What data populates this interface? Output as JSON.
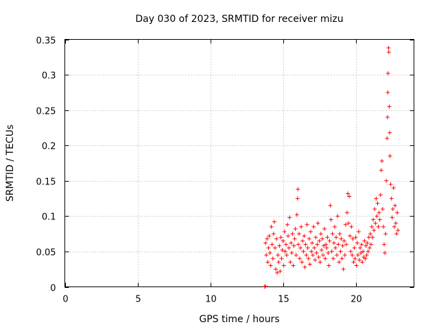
{
  "chart_data": {
    "type": "scatter",
    "title": "Day 030 of 2023, SRMTID for receiver mizu",
    "xlabel": "GPS time / hours",
    "ylabel": "SRMTID / TECUs",
    "xlim": [
      0,
      24
    ],
    "ylim": [
      0,
      0.35
    ],
    "xticks": [
      0,
      5,
      10,
      15,
      20
    ],
    "yticks": [
      0,
      0.05,
      0.1,
      0.15,
      0.2,
      0.25,
      0.3,
      0.35
    ],
    "xtick_labels": [
      "0",
      "5",
      "10",
      "15",
      "20"
    ],
    "ytick_labels": [
      "0",
      "0.05",
      "0.1",
      "0.15",
      "0.2",
      "0.25",
      "0.3",
      "0.35"
    ],
    "grid": true,
    "marker": "+",
    "color": "#ff0000",
    "series": [
      {
        "points": [
          [
            13.75,
            0.0
          ],
          [
            13.78,
            0.001
          ],
          [
            13.8,
            0.062
          ],
          [
            13.85,
            0.045
          ],
          [
            13.9,
            0.068
          ],
          [
            13.95,
            0.035
          ],
          [
            14.0,
            0.055
          ],
          [
            14.05,
            0.072
          ],
          [
            14.1,
            0.048
          ],
          [
            14.15,
            0.03
          ],
          [
            14.2,
            0.085
          ],
          [
            14.25,
            0.06
          ],
          [
            14.3,
            0.04
          ],
          [
            14.35,
            0.075
          ],
          [
            14.4,
            0.092
          ],
          [
            14.45,
            0.055
          ],
          [
            14.5,
            0.025
          ],
          [
            14.55,
            0.068
          ],
          [
            14.6,
            0.02
          ],
          [
            14.65,
            0.045
          ],
          [
            14.7,
            0.035
          ],
          [
            14.75,
            0.058
          ],
          [
            14.8,
            0.022
          ],
          [
            14.85,
            0.07
          ],
          [
            14.9,
            0.04
          ],
          [
            14.95,
            0.052
          ],
          [
            15.0,
            0.065
          ],
          [
            15.05,
            0.03
          ],
          [
            15.1,
            0.078
          ],
          [
            15.15,
            0.05
          ],
          [
            15.2,
            0.06
          ],
          [
            15.25,
            0.045
          ],
          [
            15.3,
            0.088
          ],
          [
            15.35,
            0.072
          ],
          [
            15.4,
            0.055
          ],
          [
            15.45,
            0.098
          ],
          [
            15.5,
            0.035
          ],
          [
            15.55,
            0.062
          ],
          [
            15.6,
            0.048
          ],
          [
            15.65,
            0.075
          ],
          [
            15.7,
            0.03
          ],
          [
            15.75,
            0.058
          ],
          [
            15.8,
            0.068
          ],
          [
            15.85,
            0.082
          ],
          [
            15.9,
            0.045
          ],
          [
            15.95,
            0.102
          ],
          [
            16.0,
            0.125
          ],
          [
            16.02,
            0.138
          ],
          [
            16.05,
            0.06
          ],
          [
            16.1,
            0.075
          ],
          [
            16.15,
            0.04
          ],
          [
            16.2,
            0.055
          ],
          [
            16.25,
            0.085
          ],
          [
            16.3,
            0.035
          ],
          [
            16.35,
            0.065
          ],
          [
            16.4,
            0.05
          ],
          [
            16.45,
            0.072
          ],
          [
            16.5,
            0.028
          ],
          [
            16.55,
            0.06
          ],
          [
            16.6,
            0.045
          ],
          [
            16.65,
            0.088
          ],
          [
            16.7,
            0.055
          ],
          [
            16.75,
            0.04
          ],
          [
            16.8,
            0.068
          ],
          [
            16.85,
            0.032
          ],
          [
            16.9,
            0.078
          ],
          [
            16.95,
            0.05
          ],
          [
            17.0,
            0.062
          ],
          [
            17.05,
            0.045
          ],
          [
            17.1,
            0.085
          ],
          [
            17.15,
            0.055
          ],
          [
            17.2,
            0.038
          ],
          [
            17.25,
            0.07
          ],
          [
            17.3,
            0.048
          ],
          [
            17.35,
            0.06
          ],
          [
            17.4,
            0.09
          ],
          [
            17.45,
            0.042
          ],
          [
            17.5,
            0.065
          ],
          [
            17.55,
            0.035
          ],
          [
            17.6,
            0.075
          ],
          [
            17.65,
            0.052
          ],
          [
            17.7,
            0.068
          ],
          [
            17.75,
            0.045
          ],
          [
            17.8,
            0.058
          ],
          [
            17.85,
            0.082
          ],
          [
            17.9,
            0.04
          ],
          [
            17.95,
            0.06
          ],
          [
            18.0,
            0.055
          ],
          [
            18.05,
            0.07
          ],
          [
            18.1,
            0.048
          ],
          [
            18.15,
            0.03
          ],
          [
            18.2,
            0.065
          ],
          [
            18.25,
            0.115
          ],
          [
            18.3,
            0.095
          ],
          [
            18.35,
            0.05
          ],
          [
            18.4,
            0.075
          ],
          [
            18.45,
            0.04
          ],
          [
            18.5,
            0.062
          ],
          [
            18.55,
            0.085
          ],
          [
            18.6,
            0.055
          ],
          [
            18.65,
            0.07
          ],
          [
            18.7,
            0.045
          ],
          [
            18.75,
            0.1
          ],
          [
            18.8,
            0.06
          ],
          [
            18.85,
            0.035
          ],
          [
            18.9,
            0.075
          ],
          [
            18.95,
            0.05
          ],
          [
            19.0,
            0.068
          ],
          [
            19.05,
            0.04
          ],
          [
            19.1,
            0.058
          ],
          [
            19.15,
            0.025
          ],
          [
            19.2,
            0.065
          ],
          [
            19.25,
            0.045
          ],
          [
            19.3,
            0.088
          ],
          [
            19.35,
            0.06
          ],
          [
            19.4,
            0.105
          ],
          [
            19.45,
            0.132
          ],
          [
            19.5,
            0.09
          ],
          [
            19.55,
            0.128
          ],
          [
            19.6,
            0.072
          ],
          [
            19.65,
            0.05
          ],
          [
            19.7,
            0.085
          ],
          [
            19.75,
            0.045
          ],
          [
            19.8,
            0.068
          ],
          [
            19.85,
            0.035
          ],
          [
            19.9,
            0.055
          ],
          [
            19.95,
            0.04
          ],
          [
            20.0,
            0.07
          ],
          [
            20.05,
            0.03
          ],
          [
            20.1,
            0.062
          ],
          [
            20.15,
            0.045
          ],
          [
            20.2,
            0.078
          ],
          [
            20.25,
            0.038
          ],
          [
            20.3,
            0.055
          ],
          [
            20.35,
            0.048
          ],
          [
            20.4,
            0.06
          ],
          [
            20.45,
            0.035
          ],
          [
            20.5,
            0.05
          ],
          [
            20.55,
            0.042
          ],
          [
            20.6,
            0.065
          ],
          [
            20.65,
            0.04
          ],
          [
            20.7,
            0.058
          ],
          [
            20.75,
            0.045
          ],
          [
            20.8,
            0.062
          ],
          [
            20.85,
            0.05
          ],
          [
            20.9,
            0.07
          ],
          [
            20.95,
            0.055
          ],
          [
            21.0,
            0.075
          ],
          [
            21.05,
            0.06
          ],
          [
            21.1,
            0.085
          ],
          [
            21.15,
            0.07
          ],
          [
            21.2,
            0.095
          ],
          [
            21.25,
            0.08
          ],
          [
            21.3,
            0.11
          ],
          [
            21.35,
            0.09
          ],
          [
            21.4,
            0.125
          ],
          [
            21.45,
            0.1
          ],
          [
            21.5,
            0.118
          ],
          [
            21.55,
            0.085
          ],
          [
            21.6,
            0.105
          ],
          [
            21.65,
            0.095
          ],
          [
            21.7,
            0.13
          ],
          [
            21.75,
            0.165
          ],
          [
            21.8,
            0.178
          ],
          [
            21.85,
            0.11
          ],
          [
            21.9,
            0.085
          ],
          [
            21.95,
            0.06
          ],
          [
            22.0,
            0.048
          ],
          [
            22.05,
            0.075
          ],
          [
            22.1,
            0.15
          ],
          [
            22.15,
            0.21
          ],
          [
            22.18,
            0.24
          ],
          [
            22.2,
            0.275
          ],
          [
            22.22,
            0.302
          ],
          [
            22.25,
            0.338
          ],
          [
            22.27,
            0.332
          ],
          [
            22.3,
            0.255
          ],
          [
            22.33,
            0.218
          ],
          [
            22.35,
            0.185
          ],
          [
            22.4,
            0.145
          ],
          [
            22.45,
            0.125
          ],
          [
            22.5,
            0.098
          ],
          [
            22.55,
            0.11
          ],
          [
            22.6,
            0.14
          ],
          [
            22.65,
            0.085
          ],
          [
            22.7,
            0.115
          ],
          [
            22.75,
            0.09
          ],
          [
            22.8,
            0.075
          ],
          [
            22.85,
            0.105
          ],
          [
            22.9,
            0.08
          ]
        ]
      }
    ]
  }
}
